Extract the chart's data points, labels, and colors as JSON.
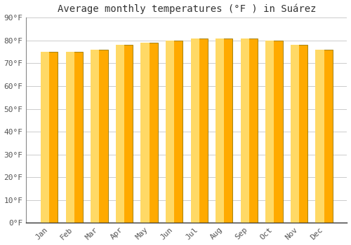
{
  "title": "Average monthly temperatures (°F ) in Suárez",
  "months": [
    "Jan",
    "Feb",
    "Mar",
    "Apr",
    "May",
    "Jun",
    "Jul",
    "Aug",
    "Sep",
    "Oct",
    "Nov",
    "Dec"
  ],
  "values": [
    75,
    75,
    76,
    78,
    79,
    80,
    81,
    81,
    81,
    80,
    78,
    76
  ],
  "bar_color_main": "#FFAA00",
  "bar_color_light": "#FFD966",
  "bar_edge_color": "#888800",
  "background_color": "#FFFFFF",
  "grid_color": "#CCCCCC",
  "ylim": [
    0,
    90
  ],
  "yticks": [
    0,
    10,
    20,
    30,
    40,
    50,
    60,
    70,
    80,
    90
  ],
  "title_fontsize": 10,
  "tick_fontsize": 8,
  "ax_label_color": "#555555"
}
